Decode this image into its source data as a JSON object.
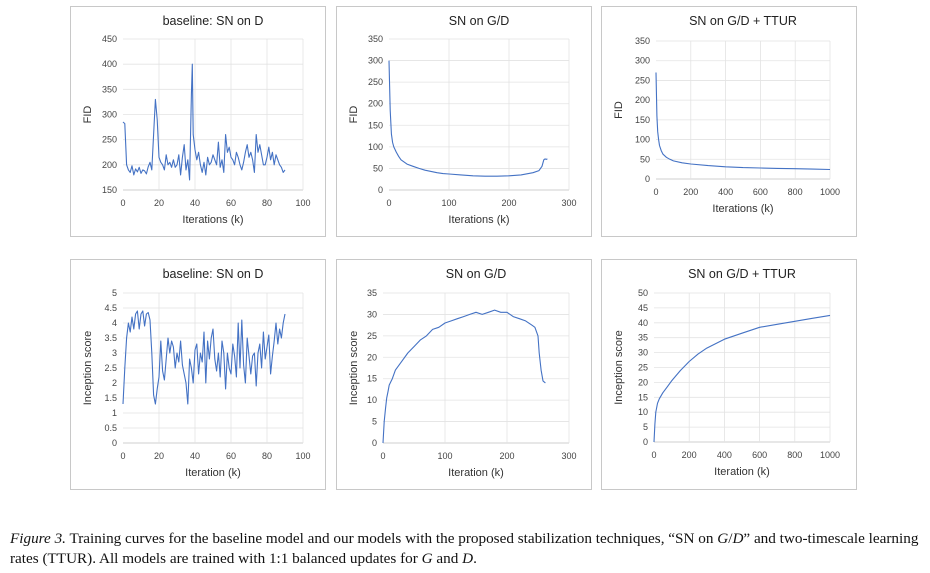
{
  "caption": {
    "label": "Figure 3.",
    "text_1": " Training curves for the baseline model and our models with the proposed stabilization techniques, “SN on ",
    "g": "G",
    "slash": "/",
    "d": "D",
    "text_2": "” and two-timescale learning rates (TTUR). All models are trained with 1:1 balanced updates for ",
    "g2": "G",
    "and": " and ",
    "d2": "D",
    "end": "."
  },
  "chart_data": [
    {
      "type": "line",
      "title": "baseline: SN on D",
      "xlabel": "Iterations (k)",
      "ylabel": "FID",
      "xlim": [
        0,
        100
      ],
      "ylim": [
        150,
        450
      ],
      "xticks": [
        "0",
        "20",
        "40",
        "60",
        "80",
        "100"
      ],
      "yticks": [
        "150",
        "200",
        "250",
        "300",
        "350",
        "400",
        "450"
      ],
      "grid": true,
      "series": [
        {
          "color": "#4472c4",
          "x": [
            0,
            1,
            2,
            3,
            4,
            5,
            6,
            7,
            8,
            9,
            10,
            11,
            12,
            13,
            14,
            15,
            16,
            17,
            18,
            19,
            20,
            21,
            22,
            23,
            24,
            25,
            26,
            27,
            28,
            29,
            30,
            31,
            32,
            33,
            34,
            35,
            36,
            37,
            38,
            38.5,
            39,
            40,
            41,
            42,
            43,
            44,
            45,
            46,
            47,
            48,
            49,
            50,
            51,
            52,
            53,
            54,
            55,
            56,
            57,
            58,
            59,
            60,
            61,
            62,
            63,
            64,
            65,
            66,
            67,
            68,
            69,
            70,
            71,
            72,
            73,
            74,
            75,
            76,
            77,
            78,
            79,
            80,
            81,
            82,
            83,
            84,
            85,
            86,
            87,
            88,
            89,
            90
          ],
          "y": [
            285,
            282,
            200,
            190,
            185,
            198,
            180,
            192,
            186,
            195,
            183,
            190,
            188,
            182,
            196,
            205,
            190,
            260,
            330,
            290,
            215,
            205,
            200,
            190,
            220,
            200,
            205,
            195,
            210,
            195,
            200,
            220,
            180,
            215,
            240,
            190,
            210,
            170,
            340,
            400,
            260,
            230,
            210,
            225,
            200,
            185,
            205,
            180,
            215,
            200,
            205,
            220,
            210,
            200,
            245,
            195,
            210,
            185,
            260,
            225,
            235,
            215,
            210,
            200,
            225,
            215,
            200,
            190,
            205,
            225,
            240,
            215,
            225,
            210,
            185,
            260,
            225,
            240,
            220,
            200,
            200,
            215,
            235,
            210,
            225,
            200,
            220,
            210,
            200,
            195,
            185,
            190
          ]
        }
      ]
    },
    {
      "type": "line",
      "title": "SN on G/D",
      "xlabel": "Iterations (k)",
      "ylabel": "FID",
      "xlim": [
        0,
        300
      ],
      "ylim": [
        0,
        350
      ],
      "xticks": [
        "0",
        "100",
        "200",
        "300"
      ],
      "yticks": [
        "0",
        "50",
        "100",
        "150",
        "200",
        "250",
        "300",
        "350"
      ],
      "grid": true,
      "series": [
        {
          "color": "#4472c4",
          "x": [
            0,
            2,
            4,
            6,
            8,
            12,
            16,
            20,
            30,
            40,
            50,
            60,
            70,
            80,
            90,
            100,
            120,
            140,
            160,
            180,
            200,
            220,
            240,
            250,
            255,
            258,
            260,
            262,
            264
          ],
          "y": [
            300,
            185,
            130,
            110,
            100,
            88,
            78,
            70,
            60,
            55,
            50,
            46,
            43,
            40,
            38,
            37,
            35,
            33,
            32,
            32,
            33,
            35,
            40,
            45,
            55,
            70,
            72,
            71,
            72
          ]
        }
      ]
    },
    {
      "type": "line",
      "title": "SN on G/D + TTUR",
      "xlabel": "Iterations (k)",
      "ylabel": "FID",
      "xlim": [
        0,
        1000
      ],
      "ylim": [
        0,
        350
      ],
      "xticks": [
        "0",
        "200",
        "400",
        "600",
        "800",
        "1000"
      ],
      "yticks": [
        "0",
        "50",
        "100",
        "150",
        "200",
        "250",
        "300",
        "350"
      ],
      "grid": true,
      "series": [
        {
          "color": "#4472c4",
          "x": [
            0,
            5,
            10,
            15,
            20,
            30,
            40,
            60,
            80,
            100,
            150,
            200,
            300,
            400,
            500,
            600,
            700,
            800,
            900,
            1000
          ],
          "y": [
            270,
            160,
            120,
            100,
            85,
            72,
            63,
            55,
            50,
            46,
            41,
            38,
            34,
            31,
            29,
            28,
            27,
            26,
            25,
            24
          ]
        }
      ]
    },
    {
      "type": "line",
      "title": "baseline: SN on D",
      "xlabel": "Iteration (k)",
      "ylabel": "Inception score",
      "xlim": [
        0,
        100
      ],
      "ylim": [
        0,
        5
      ],
      "xticks": [
        "0",
        "20",
        "40",
        "60",
        "80",
        "100"
      ],
      "yticks": [
        "0",
        "0.5",
        "1",
        "1.5",
        "2",
        "2.5",
        "3",
        "3.5",
        "4",
        "4.5",
        "5"
      ],
      "grid": true,
      "series": [
        {
          "color": "#4472c4",
          "x": [
            0,
            1,
            2,
            3,
            4,
            5,
            6,
            7,
            8,
            9,
            10,
            11,
            12,
            13,
            14,
            15,
            16,
            17,
            18,
            19,
            20,
            21,
            22,
            23,
            24,
            25,
            26,
            27,
            28,
            29,
            30,
            31,
            32,
            33,
            34,
            35,
            36,
            37,
            38,
            39,
            40,
            41,
            42,
            43,
            44,
            45,
            46,
            47,
            48,
            49,
            50,
            51,
            52,
            53,
            54,
            55,
            56,
            57,
            58,
            59,
            60,
            61,
            62,
            63,
            64,
            65,
            66,
            67,
            68,
            69,
            70,
            71,
            72,
            73,
            74,
            75,
            76,
            77,
            78,
            79,
            80,
            81,
            82,
            83,
            84,
            85,
            86,
            87,
            88,
            89,
            90
          ],
          "y": [
            1.3,
            2.5,
            3.5,
            4.0,
            3.7,
            4.2,
            3.8,
            4.3,
            4.4,
            3.8,
            4.3,
            4.4,
            3.9,
            4.3,
            4.35,
            4.1,
            3.0,
            1.6,
            1.3,
            1.8,
            2.2,
            3.4,
            2.4,
            2.1,
            2.8,
            3.5,
            3.0,
            3.4,
            3.2,
            2.5,
            3.0,
            2.7,
            3.4,
            2.6,
            2.3,
            2.0,
            1.3,
            2.8,
            2.5,
            2.0,
            3.1,
            3.3,
            2.3,
            3.0,
            2.7,
            3.7,
            2.0,
            3.4,
            2.8,
            3.5,
            3.8,
            2.8,
            2.4,
            3.0,
            2.2,
            3.4,
            3.0,
            1.8,
            3.0,
            2.5,
            2.3,
            3.3,
            2.9,
            2.2,
            4.0,
            2.5,
            4.1,
            2.6,
            2.0,
            3.5,
            2.9,
            2.3,
            2.9,
            3.0,
            1.9,
            3.0,
            3.3,
            2.5,
            3.7,
            2.8,
            3.2,
            3.6,
            2.3,
            2.9,
            3.4,
            4.0,
            3.3,
            3.8,
            3.5,
            4.0,
            4.3
          ]
        }
      ]
    },
    {
      "type": "line",
      "title": "SN on G/D",
      "xlabel": "Iteration (k)",
      "ylabel": "Inception score",
      "xlim": [
        0,
        300
      ],
      "ylim": [
        0,
        35
      ],
      "xticks": [
        "0",
        "100",
        "200",
        "300"
      ],
      "yticks": [
        "0",
        "5",
        "10",
        "15",
        "20",
        "25",
        "30",
        "35"
      ],
      "grid": true,
      "series": [
        {
          "color": "#4472c4",
          "x": [
            0,
            2,
            4,
            6,
            8,
            10,
            15,
            20,
            30,
            40,
            50,
            60,
            70,
            80,
            90,
            100,
            110,
            120,
            130,
            140,
            150,
            160,
            170,
            180,
            190,
            200,
            210,
            220,
            230,
            240,
            245,
            250,
            252,
            255,
            258,
            262
          ],
          "y": [
            0,
            5,
            8,
            10.5,
            12,
            13.5,
            15,
            17,
            19,
            21,
            22.5,
            24,
            25,
            26.5,
            27,
            28,
            28.5,
            29,
            29.5,
            30,
            30.5,
            30,
            30.5,
            31,
            30.5,
            30.5,
            29.5,
            29,
            28.5,
            27.5,
            27,
            25,
            21,
            17,
            14.5,
            14
          ]
        }
      ]
    },
    {
      "type": "line",
      "title": "SN on G/D + TTUR",
      "xlabel": "Iteration (k)",
      "ylabel": "Inception score",
      "xlim": [
        0,
        1000
      ],
      "ylim": [
        0,
        50
      ],
      "xticks": [
        "0",
        "200",
        "400",
        "600",
        "800",
        "1000"
      ],
      "yticks": [
        "0",
        "5",
        "10",
        "15",
        "20",
        "25",
        "30",
        "35",
        "40",
        "45",
        "50"
      ],
      "grid": true,
      "series": [
        {
          "color": "#4472c4",
          "x": [
            0,
            5,
            10,
            20,
            30,
            50,
            75,
            100,
            150,
            200,
            250,
            300,
            400,
            500,
            600,
            700,
            800,
            900,
            1000
          ],
          "y": [
            0,
            6,
            10,
            13,
            14.5,
            16.5,
            18.5,
            20.5,
            24,
            27,
            29.5,
            31.5,
            34.5,
            36.5,
            38.5,
            39.5,
            40.5,
            41.5,
            42.5
          ]
        }
      ]
    }
  ]
}
